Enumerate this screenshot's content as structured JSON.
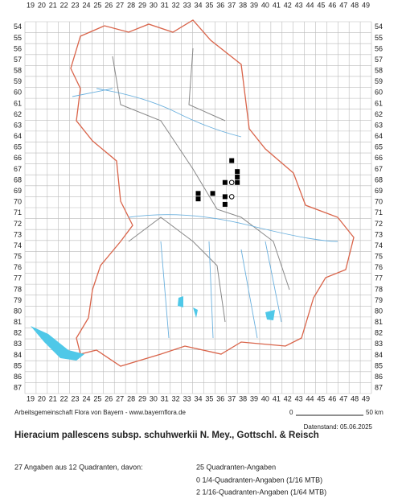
{
  "map": {
    "columns": [
      19,
      20,
      21,
      22,
      23,
      24,
      25,
      26,
      27,
      28,
      29,
      30,
      31,
      32,
      33,
      34,
      35,
      36,
      37,
      38,
      39,
      40,
      41,
      42,
      43,
      44,
      45,
      46,
      47,
      48,
      49
    ],
    "rows": [
      54,
      55,
      56,
      57,
      58,
      59,
      60,
      61,
      62,
      63,
      64,
      65,
      66,
      67,
      68,
      69,
      70,
      71,
      72,
      73,
      74,
      75,
      76,
      77,
      78,
      79,
      80,
      81,
      82,
      83,
      84,
      85,
      86,
      87
    ],
    "records": [
      {
        "x": 37.0,
        "y": 66.2,
        "kind": "square"
      },
      {
        "x": 37.5,
        "y": 67.2,
        "kind": "square"
      },
      {
        "x": 37.5,
        "y": 67.7,
        "kind": "square"
      },
      {
        "x": 36.4,
        "y": 68.2,
        "kind": "square"
      },
      {
        "x": 37.5,
        "y": 68.2,
        "kind": "square"
      },
      {
        "x": 37.0,
        "y": 68.2,
        "kind": "circle"
      },
      {
        "x": 34.0,
        "y": 69.2,
        "kind": "square"
      },
      {
        "x": 35.3,
        "y": 69.2,
        "kind": "square"
      },
      {
        "x": 34.0,
        "y": 69.7,
        "kind": "square"
      },
      {
        "x": 36.4,
        "y": 69.5,
        "kind": "square"
      },
      {
        "x": 37.0,
        "y": 69.5,
        "kind": "circle"
      },
      {
        "x": 36.4,
        "y": 70.2,
        "kind": "square"
      }
    ]
  },
  "footer": {
    "credit": "Arbeitsgemeinschaft Flora von Bayern - www.bayernflora.de",
    "scale_start": "0",
    "scale_end": "50 km",
    "date": "Datenstand: 05.06.2025"
  },
  "title": "Hieracium pallescens subsp. schuhwerkii N. Mey., Gottschl. & Reisch",
  "stats": {
    "summary": "27 Angaben aus 12 Quadranten, davon:",
    "lines": [
      "25 Quadranten-Angaben",
      "0 1/4-Quadranten-Angaben (1/16 MTB)",
      "2 1/16-Quadranten-Angaben (1/64 MTB)"
    ]
  }
}
